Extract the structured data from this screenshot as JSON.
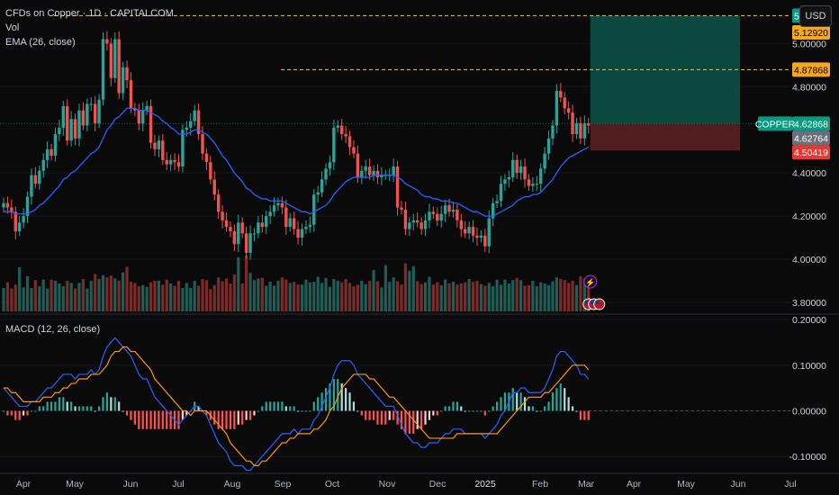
{
  "header": {
    "symbol_line": "CFDs on Copper · 1D · CAPITALCOM",
    "vol_label": "Vol",
    "ema_label": "EMA (26, close)",
    "macd_label": "MACD (12, 26, close)",
    "currency": "USD"
  },
  "colors": {
    "up": "#26a69a",
    "down": "#ef5350",
    "ema": "#2962ff",
    "macd": "#2962ff",
    "signal": "#ff9800",
    "target_dash": "#f5c242",
    "profit_zone": "#0b4f46",
    "loss_zone": "#5a1f20",
    "copper_tag": "#089981"
  },
  "chart_data": [
    {
      "type": "candlestick",
      "series_name": "",
      "y_ticks": [
        "5.00000",
        "4.80000",
        "4.40000",
        "4.20000",
        "4.00000",
        "3.80000"
      ],
      "ylim": [
        3.75,
        5.16
      ],
      "x_ticks": [
        "Apr",
        "May",
        "Jun",
        "Jul",
        "Aug",
        "Sep",
        "Oct",
        "Nov",
        "Dec",
        "2025",
        "Feb",
        "Mar",
        "Apr",
        "May",
        "Jun",
        "Jul"
      ],
      "closes": [
        4.26,
        4.24,
        4.22,
        4.13,
        4.17,
        4.2,
        4.29,
        4.39,
        4.35,
        4.41,
        4.46,
        4.51,
        4.48,
        4.58,
        4.61,
        4.71,
        4.55,
        4.65,
        4.56,
        4.69,
        4.62,
        4.72,
        4.72,
        4.63,
        4.74,
        5.02,
        5.0,
        4.84,
        5.02,
        4.77,
        4.89,
        4.83,
        4.7,
        4.69,
        4.63,
        4.69,
        4.71,
        4.54,
        4.51,
        4.55,
        4.46,
        4.44,
        4.46,
        4.45,
        4.43,
        4.6,
        4.61,
        4.64,
        4.69,
        4.58,
        4.49,
        4.45,
        4.37,
        4.3,
        4.22,
        4.18,
        4.15,
        4.13,
        4.07,
        4.17,
        4.12,
        4.03,
        4.12,
        4.12,
        4.17,
        4.15,
        4.2,
        4.22,
        4.25,
        4.26,
        4.24,
        4.15,
        4.19,
        4.14,
        4.1,
        4.14,
        4.15,
        4.16,
        4.3,
        4.31,
        4.37,
        4.42,
        4.45,
        4.61,
        4.62,
        4.58,
        4.57,
        4.52,
        4.49,
        4.38,
        4.41,
        4.43,
        4.39,
        4.41,
        4.38,
        4.39,
        4.39,
        4.39,
        4.43,
        4.24,
        4.23,
        4.14,
        4.17,
        4.18,
        4.17,
        4.14,
        4.18,
        4.22,
        4.21,
        4.18,
        4.21,
        4.25,
        4.22,
        4.23,
        4.18,
        4.14,
        4.12,
        4.15,
        4.11,
        4.1,
        4.11,
        4.06,
        4.19,
        4.26,
        4.27,
        4.35,
        4.37,
        4.38,
        4.46,
        4.4,
        4.43,
        4.37,
        4.34,
        4.35,
        4.35,
        4.42,
        4.49,
        4.56,
        4.62,
        4.78,
        4.75,
        4.7,
        4.68,
        4.58,
        4.63,
        4.56,
        4.63,
        4.62
      ],
      "ema26": [
        4.22,
        4.22,
        4.22,
        4.21,
        4.21,
        4.21,
        4.21,
        4.22,
        4.23,
        4.25,
        4.26,
        4.28,
        4.3,
        4.32,
        4.34,
        4.37,
        4.38,
        4.4,
        4.41,
        4.43,
        4.45,
        4.47,
        4.49,
        4.5,
        4.52,
        4.56,
        4.6,
        4.62,
        4.65,
        4.66,
        4.68,
        4.7,
        4.7,
        4.7,
        4.69,
        4.69,
        4.69,
        4.68,
        4.67,
        4.66,
        4.64,
        4.63,
        4.61,
        4.6,
        4.58,
        4.58,
        4.58,
        4.59,
        4.6,
        4.6,
        4.59,
        4.58,
        4.56,
        4.54,
        4.51,
        4.48,
        4.46,
        4.43,
        4.4,
        4.38,
        4.36,
        4.33,
        4.32,
        4.3,
        4.29,
        4.28,
        4.28,
        4.27,
        4.27,
        4.27,
        4.27,
        4.26,
        4.25,
        4.24,
        4.23,
        4.22,
        4.22,
        4.21,
        4.22,
        4.23,
        4.24,
        4.25,
        4.27,
        4.3,
        4.32,
        4.34,
        4.36,
        4.37,
        4.38,
        4.38,
        4.38,
        4.38,
        4.38,
        4.39,
        4.39,
        4.39,
        4.39,
        4.39,
        4.39,
        4.38,
        4.37,
        4.35,
        4.34,
        4.33,
        4.32,
        4.3,
        4.29,
        4.29,
        4.28,
        4.28,
        4.27,
        4.27,
        4.27,
        4.26,
        4.26,
        4.25,
        4.24,
        4.23,
        4.22,
        4.22,
        4.21,
        4.2,
        4.2,
        4.2,
        4.21,
        4.22,
        4.23,
        4.24,
        4.25,
        4.27,
        4.28,
        4.29,
        4.29,
        4.3,
        4.3,
        4.31,
        4.33,
        4.35,
        4.37,
        4.4,
        4.43,
        4.45,
        4.47,
        4.48,
        4.49,
        4.5,
        4.51,
        4.52
      ]
    },
    {
      "type": "bar",
      "series_name": "Vol",
      "values": [
        0.42,
        0.52,
        0.41,
        0.48,
        0.79,
        0.43,
        0.63,
        0.42,
        0.56,
        0.45,
        0.57,
        0.41,
        0.57,
        0.55,
        0.5,
        0.45,
        0.55,
        0.51,
        0.41,
        0.51,
        0.58,
        0.41,
        0.55,
        0.67,
        0.58,
        0.65,
        0.61,
        0.64,
        0.59,
        0.55,
        0.7,
        0.8,
        0.53,
        0.51,
        0.45,
        0.47,
        0.44,
        0.52,
        0.55,
        0.55,
        0.48,
        0.57,
        0.5,
        0.46,
        0.55,
        0.42,
        0.51,
        0.42,
        0.55,
        0.46,
        0.58,
        0.56,
        0.4,
        0.47,
        0.61,
        0.54,
        0.59,
        0.5,
        0.66,
        0.97,
        0.5,
        1.0,
        0.69,
        0.56,
        0.59,
        0.6,
        0.46,
        0.53,
        0.46,
        0.55,
        0.61,
        0.57,
        0.51,
        0.53,
        0.48,
        0.48,
        0.57,
        0.52,
        0.53,
        0.62,
        0.51,
        0.6,
        0.44,
        0.58,
        0.55,
        0.52,
        0.58,
        0.51,
        0.45,
        0.48,
        0.55,
        0.49,
        0.55,
        0.74,
        0.54,
        0.43,
        0.83,
        0.53,
        0.61,
        0.54,
        0.48,
        0.86,
        0.73,
        0.81,
        0.54,
        0.49,
        0.52,
        0.62,
        0.48,
        0.52,
        0.47,
        0.57,
        0.5,
        0.53,
        0.48,
        0.5,
        0.52,
        0.58,
        0.53,
        0.55,
        0.49,
        0.46,
        0.51,
        0.45,
        0.57,
        0.48,
        0.57,
        0.5,
        0.56,
        0.6,
        0.56,
        0.46,
        0.47,
        0.55,
        0.45,
        0.52,
        0.5,
        0.47,
        0.54,
        0.61,
        0.58,
        0.56,
        0.51,
        0.55,
        0.47,
        0.63,
        0.59,
        0.6
      ]
    },
    {
      "type": "line",
      "series_name": "MACD (12, 26, close)",
      "y_ticks": [
        "0.20000",
        "0.10000",
        "0.00000",
        "-0.10000"
      ],
      "ylim": [
        -0.135,
        0.21
      ],
      "series": [
        {
          "name": "MACD",
          "values": [
            0.05,
            0.04,
            0.03,
            0.02,
            0.01,
            0.01,
            0.01,
            0.02,
            0.02,
            0.03,
            0.04,
            0.05,
            0.05,
            0.06,
            0.07,
            0.08,
            0.08,
            0.08,
            0.07,
            0.08,
            0.08,
            0.08,
            0.09,
            0.08,
            0.09,
            0.12,
            0.14,
            0.15,
            0.16,
            0.15,
            0.14,
            0.13,
            0.12,
            0.1,
            0.08,
            0.07,
            0.07,
            0.05,
            0.03,
            0.02,
            0.01,
            -0.0,
            -0.01,
            -0.02,
            -0.03,
            -0.02,
            -0.01,
            -0.0,
            0.01,
            0.01,
            0.0,
            -0.01,
            -0.03,
            -0.05,
            -0.07,
            -0.08,
            -0.09,
            -0.11,
            -0.12,
            -0.12,
            -0.12,
            -0.13,
            -0.13,
            -0.12,
            -0.11,
            -0.1,
            -0.09,
            -0.08,
            -0.07,
            -0.06,
            -0.05,
            -0.05,
            -0.05,
            -0.04,
            -0.05,
            -0.04,
            -0.04,
            -0.04,
            -0.02,
            -0.01,
            0.01,
            0.03,
            0.05,
            0.08,
            0.1,
            0.11,
            0.11,
            0.11,
            0.1,
            0.08,
            0.07,
            0.06,
            0.05,
            0.04,
            0.03,
            0.02,
            0.01,
            0.01,
            0.01,
            -0.01,
            -0.03,
            -0.05,
            -0.06,
            -0.07,
            -0.07,
            -0.08,
            -0.08,
            -0.07,
            -0.07,
            -0.07,
            -0.06,
            -0.05,
            -0.05,
            -0.04,
            -0.04,
            -0.04,
            -0.05,
            -0.05,
            -0.05,
            -0.05,
            -0.05,
            -0.06,
            -0.05,
            -0.04,
            -0.03,
            -0.01,
            0.0,
            0.02,
            0.04,
            0.04,
            0.05,
            0.05,
            0.04,
            0.04,
            0.04,
            0.04,
            0.05,
            0.07,
            0.09,
            0.12,
            0.13,
            0.13,
            0.12,
            0.11,
            0.1,
            0.08,
            0.08,
            0.07
          ]
        },
        {
          "name": "Signal",
          "values": [
            0.05,
            0.05,
            0.04,
            0.04,
            0.03,
            0.02,
            0.02,
            0.02,
            0.02,
            0.02,
            0.03,
            0.03,
            0.03,
            0.04,
            0.04,
            0.05,
            0.05,
            0.06,
            0.06,
            0.07,
            0.07,
            0.07,
            0.08,
            0.08,
            0.08,
            0.09,
            0.1,
            0.12,
            0.13,
            0.13,
            0.14,
            0.14,
            0.13,
            0.13,
            0.12,
            0.11,
            0.1,
            0.09,
            0.07,
            0.06,
            0.05,
            0.04,
            0.03,
            0.02,
            0.01,
            -0.0,
            -0.0,
            -0.01,
            -0.0,
            0.0,
            0.0,
            -0.0,
            -0.01,
            -0.02,
            -0.03,
            -0.04,
            -0.05,
            -0.07,
            -0.08,
            -0.09,
            -0.1,
            -0.11,
            -0.11,
            -0.12,
            -0.12,
            -0.11,
            -0.11,
            -0.1,
            -0.09,
            -0.08,
            -0.07,
            -0.07,
            -0.06,
            -0.06,
            -0.05,
            -0.05,
            -0.05,
            -0.05,
            -0.04,
            -0.04,
            -0.03,
            -0.02,
            -0.0,
            0.01,
            0.03,
            0.05,
            0.06,
            0.07,
            0.08,
            0.08,
            0.08,
            0.08,
            0.07,
            0.07,
            0.06,
            0.05,
            0.04,
            0.03,
            0.03,
            0.02,
            0.01,
            -0.0,
            -0.01,
            -0.02,
            -0.03,
            -0.04,
            -0.05,
            -0.06,
            -0.06,
            -0.06,
            -0.06,
            -0.06,
            -0.06,
            -0.06,
            -0.05,
            -0.05,
            -0.05,
            -0.05,
            -0.05,
            -0.05,
            -0.05,
            -0.05,
            -0.05,
            -0.05,
            -0.05,
            -0.04,
            -0.03,
            -0.02,
            -0.01,
            0.0,
            0.01,
            0.02,
            0.03,
            0.03,
            0.03,
            0.03,
            0.04,
            0.04,
            0.05,
            0.06,
            0.07,
            0.08,
            0.09,
            0.1,
            0.1,
            0.1,
            0.1,
            0.09
          ]
        },
        {
          "name": "Histogram",
          "values": [
            -0.0,
            -0.01,
            -0.01,
            -0.02,
            -0.02,
            -0.01,
            -0.01,
            0.0,
            0.0,
            0.01,
            0.01,
            0.02,
            0.02,
            0.02,
            0.03,
            0.03,
            0.02,
            0.02,
            0.01,
            0.01,
            0.01,
            0.01,
            0.01,
            0.0,
            0.01,
            0.03,
            0.04,
            0.03,
            0.03,
            0.02,
            0.0,
            -0.01,
            -0.02,
            -0.03,
            -0.04,
            -0.04,
            -0.04,
            -0.04,
            -0.04,
            -0.04,
            -0.04,
            -0.04,
            -0.04,
            -0.04,
            -0.04,
            -0.02,
            -0.01,
            0.0,
            0.02,
            0.01,
            -0.0,
            -0.01,
            -0.02,
            -0.03,
            -0.04,
            -0.04,
            -0.04,
            -0.04,
            -0.04,
            -0.03,
            -0.03,
            -0.02,
            -0.02,
            -0.01,
            0.0,
            0.01,
            0.02,
            0.02,
            0.02,
            0.02,
            0.02,
            0.01,
            0.01,
            0.01,
            -0.0,
            0.0,
            0.0,
            0.0,
            0.02,
            0.03,
            0.04,
            0.05,
            0.06,
            0.07,
            0.07,
            0.06,
            0.05,
            0.04,
            0.02,
            -0.0,
            -0.01,
            -0.02,
            -0.02,
            -0.02,
            -0.03,
            -0.03,
            -0.03,
            -0.02,
            -0.02,
            -0.03,
            -0.04,
            -0.05,
            -0.05,
            -0.05,
            -0.04,
            -0.04,
            -0.03,
            -0.02,
            -0.01,
            -0.01,
            -0.0,
            0.01,
            0.01,
            0.02,
            0.02,
            0.01,
            0.0,
            -0.0,
            -0.0,
            -0.0,
            -0.0,
            -0.01,
            -0.0,
            0.01,
            0.02,
            0.03,
            0.04,
            0.04,
            0.05,
            0.04,
            0.04,
            0.03,
            0.01,
            0.01,
            0.0,
            -0.0,
            0.01,
            0.02,
            0.04,
            0.05,
            0.06,
            0.05,
            0.03,
            0.01,
            -0.0,
            -0.02,
            -0.02,
            -0.02
          ]
        }
      ]
    }
  ],
  "position": {
    "target_price": "5.12920",
    "entry_price": "4.62868",
    "stop_price": "4.50419",
    "current_price": "4.62764",
    "prior_high": "4.87868",
    "symbol_tag": "COPPER",
    "target_value": 5.1292,
    "entry_value": 4.62868,
    "stop_value": 4.50419,
    "current_value": 4.62764,
    "prior_high_value": 4.87868
  },
  "events": {
    "flash_icon": "lightning-icon",
    "flag_icon": "us-flag-icon"
  }
}
